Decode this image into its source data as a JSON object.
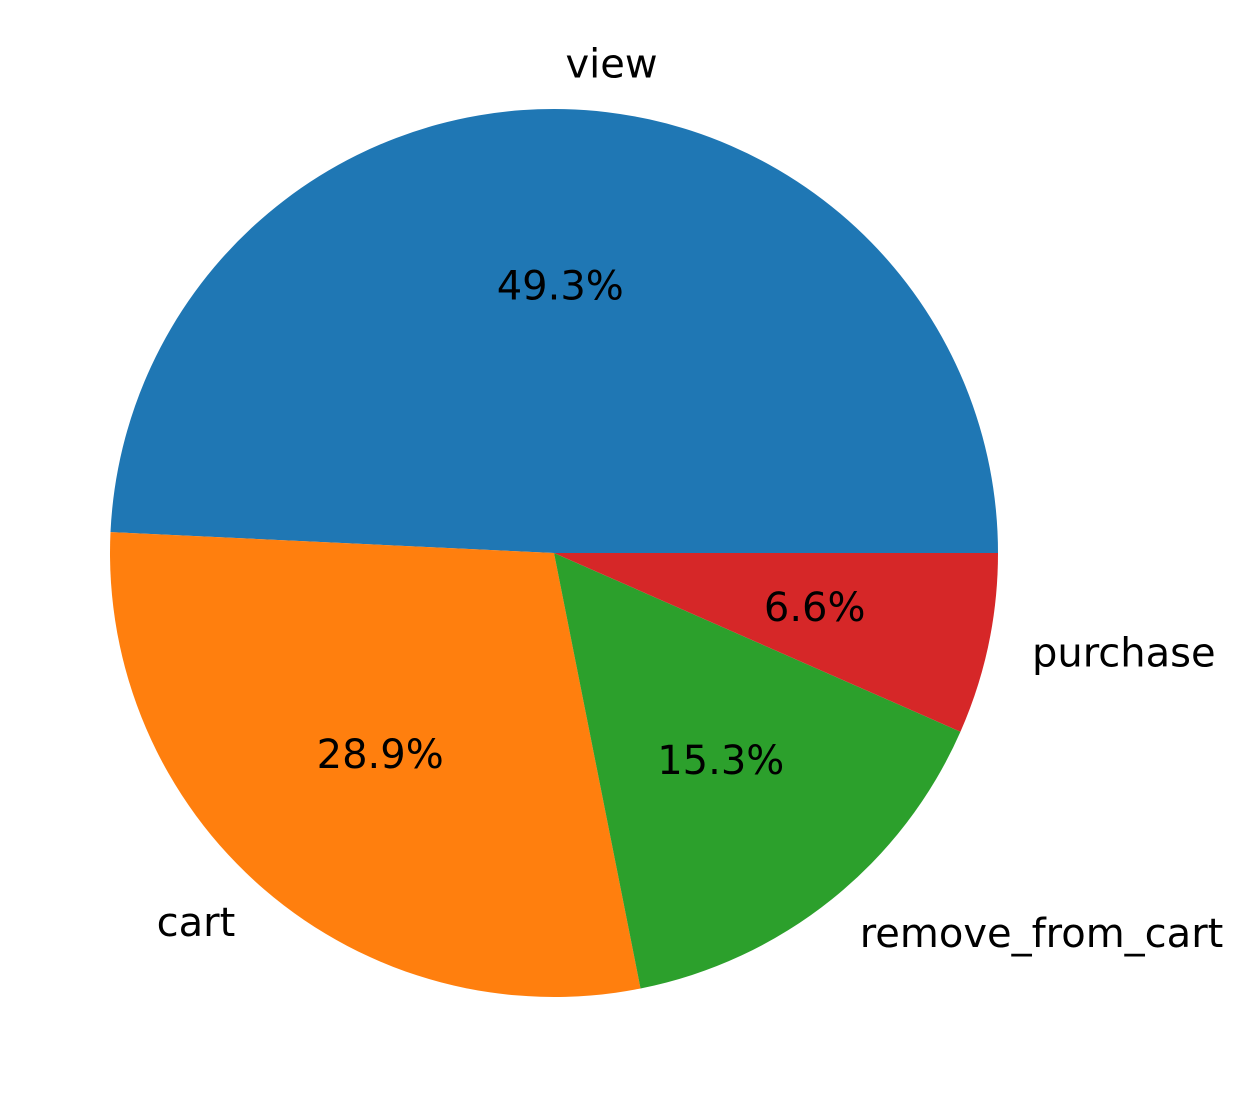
{
  "chart_data": {
    "type": "pie",
    "title": "",
    "categories": [
      "view",
      "cart",
      "remove_from_cart",
      "purchase"
    ],
    "values": [
      49.3,
      28.9,
      15.3,
      6.6
    ],
    "autopct_labels": [
      "49.3%",
      "28.9%",
      "15.3%",
      "6.6%"
    ],
    "colors": [
      "#1f77b4",
      "#ff7f0e",
      "#2ca02c",
      "#d62728"
    ],
    "start_angle_deg": 0,
    "direction": "counterclockwise"
  }
}
